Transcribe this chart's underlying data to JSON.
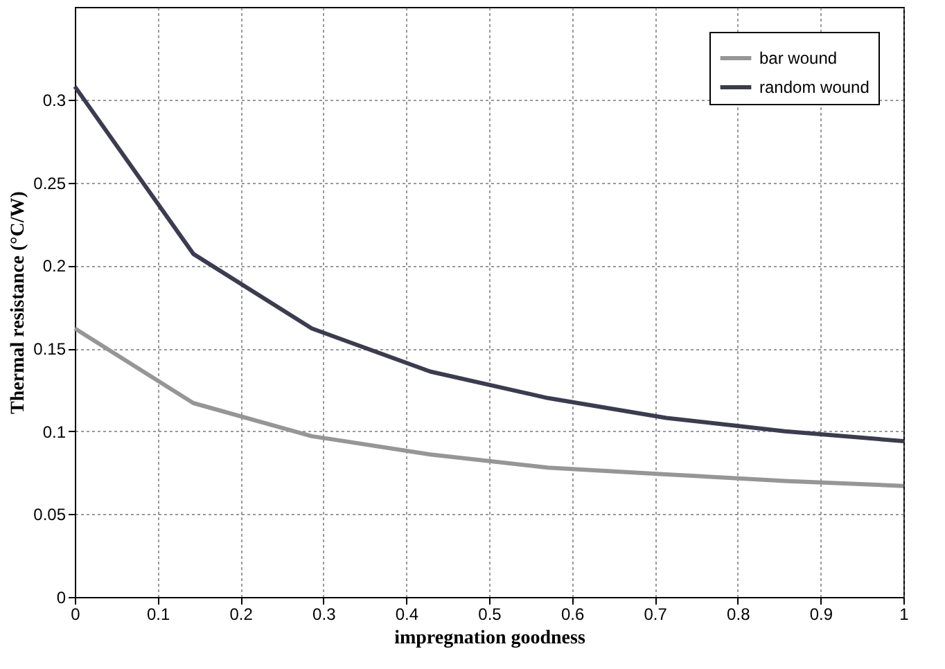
{
  "chart_data": {
    "type": "line",
    "xlabel": "impregnation goodness",
    "ylabel": "Thermal resistance (°C/W)",
    "x": [
      0,
      0.143,
      0.286,
      0.429,
      0.571,
      0.714,
      0.857,
      1
    ],
    "series": [
      {
        "name": "bar wound",
        "color": "#969696",
        "values": [
          0.162,
          0.117,
          0.097,
          0.086,
          0.078,
          0.074,
          0.07,
          0.067
        ]
      },
      {
        "name": "random wound",
        "color": "#3c3c50",
        "values": [
          0.308,
          0.207,
          0.162,
          0.136,
          0.12,
          0.108,
          0.1,
          0.094
        ]
      }
    ],
    "xlim": [
      0,
      1
    ],
    "xticks": [
      0,
      0.1,
      0.2,
      0.3,
      0.4,
      0.5,
      0.6,
      0.7,
      0.8,
      0.9,
      1
    ],
    "ylim": [
      0,
      0.356
    ],
    "yticks": [
      0,
      0.05,
      0.1,
      0.15,
      0.2,
      0.25,
      0.3
    ],
    "grid": true,
    "legend": "top right",
    "marker": "none",
    "line_style": "solid"
  }
}
